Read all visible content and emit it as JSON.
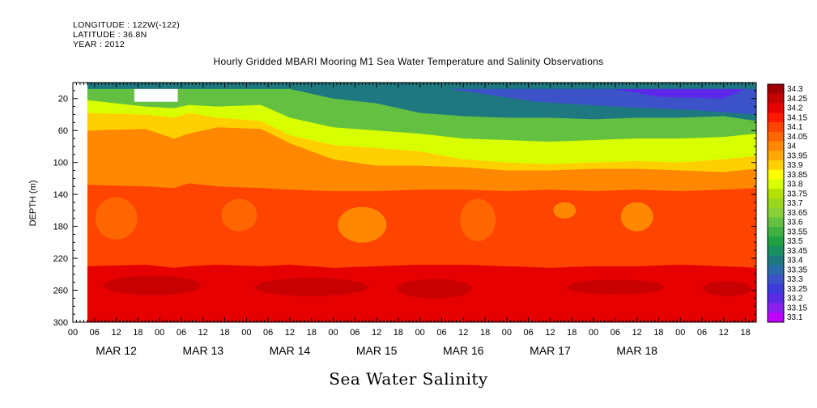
{
  "header": {
    "longitude": "LONGITUDE : 122W(-122)",
    "latitude": "LATITUDE : 36.8N",
    "year": "YEAR : 2012"
  },
  "chart_data": {
    "type": "heatmap",
    "title": "Hourly Gridded MBARI Mooring M1 Sea Water Temperature and Salinity Observations",
    "caption": "Sea Water Salinity",
    "ylabel": "DEPTH (m)",
    "ylim": [
      300,
      0
    ],
    "y_ticks": [
      20,
      60,
      100,
      140,
      180,
      220,
      260,
      300
    ],
    "x_hour_ticks": [
      "00",
      "06",
      "12",
      "18",
      "00",
      "06",
      "12",
      "18",
      "00",
      "06",
      "12",
      "18",
      "00",
      "06",
      "12",
      "18",
      "00",
      "06",
      "12",
      "18",
      "00",
      "06",
      "12",
      "18",
      "00",
      "06",
      "12",
      "18",
      "00",
      "06",
      "12",
      "18"
    ],
    "x_day_labels": [
      "MAR 12",
      "MAR 13",
      "MAR 14",
      "MAR 15",
      "MAR 16",
      "MAR 17",
      "MAR 18"
    ],
    "x_range_hours": [
      0,
      189
    ],
    "data_start_hour": 4,
    "missing_block": {
      "hours": [
        17,
        29
      ],
      "depth": [
        8,
        24
      ]
    },
    "colorbar_levels": [
      "34.3",
      "34.25",
      "34.2",
      "34.15",
      "34.1",
      "34.05",
      "34",
      "33.95",
      "33.9",
      "33.85",
      "33.8",
      "33.75",
      "33.7",
      "33.65",
      "33.6",
      "33.55",
      "33.5",
      "33.45",
      "33.4",
      "33.35",
      "33.3",
      "33.25",
      "33.2",
      "33.15",
      "33.1"
    ],
    "colorbar_colors": [
      "#a00000",
      "#c80000",
      "#e60000",
      "#ff1a00",
      "#ff4400",
      "#ff6600",
      "#ff8800",
      "#ffa800",
      "#ffd000",
      "#ffff00",
      "#d8ff00",
      "#b4e000",
      "#9ad81c",
      "#88d038",
      "#64c040",
      "#40b040",
      "#20a040",
      "#1a9060",
      "#1e7880",
      "#2a6ca8",
      "#3c52c8",
      "#3c3cdc",
      "#5a2ae8",
      "#8a20f0",
      "#c000ff"
    ],
    "series": [
      {
        "name": "isoline-33.45",
        "x": [
          4,
          20,
          28,
          32,
          40,
          52,
          60,
          72,
          84,
          96,
          108,
          120,
          132,
          144,
          156,
          168,
          180,
          189
        ],
        "y": [
          8,
          8,
          8,
          8,
          8,
          8,
          8,
          20,
          26,
          38,
          42,
          44,
          44,
          46,
          44,
          44,
          42,
          48
        ]
      },
      {
        "name": "isoline-33.7",
        "x": [
          4,
          20,
          28,
          32,
          40,
          52,
          60,
          72,
          84,
          96,
          108,
          120,
          132,
          144,
          156,
          168,
          180,
          189
        ],
        "y": [
          22,
          30,
          32,
          28,
          30,
          28,
          44,
          56,
          60,
          64,
          70,
          72,
          74,
          72,
          70,
          70,
          68,
          64
        ]
      },
      {
        "name": "isoline-33.9",
        "x": [
          4,
          20,
          28,
          32,
          40,
          52,
          60,
          72,
          84,
          96,
          108,
          120,
          132,
          144,
          156,
          168,
          180,
          189
        ],
        "y": [
          38,
          40,
          44,
          38,
          44,
          48,
          66,
          78,
          82,
          86,
          96,
          100,
          102,
          100,
          98,
          100,
          96,
          92
        ]
      },
      {
        "name": "isoline-34.0",
        "x": [
          4,
          20,
          28,
          32,
          40,
          52,
          60,
          72,
          84,
          96,
          108,
          120,
          132,
          144,
          156,
          168,
          180,
          189
        ],
        "y": [
          60,
          58,
          70,
          64,
          56,
          58,
          76,
          96,
          104,
          104,
          106,
          110,
          110,
          108,
          108,
          110,
          112,
          108
        ]
      },
      {
        "name": "isoline-34.1",
        "x": [
          4,
          20,
          28,
          32,
          40,
          52,
          60,
          72,
          84,
          96,
          108,
          120,
          132,
          144,
          156,
          168,
          180,
          189
        ],
        "y": [
          128,
          130,
          132,
          126,
          130,
          132,
          134,
          136,
          136,
          134,
          134,
          136,
          134,
          136,
          134,
          136,
          134,
          132
        ]
      },
      {
        "name": "isoline-34.2",
        "x": [
          4,
          20,
          28,
          32,
          40,
          52,
          60,
          72,
          84,
          96,
          108,
          120,
          132,
          144,
          156,
          168,
          180,
          189
        ],
        "y": [
          230,
          228,
          232,
          230,
          228,
          230,
          228,
          232,
          230,
          228,
          228,
          230,
          232,
          230,
          230,
          228,
          230,
          232
        ]
      }
    ]
  }
}
